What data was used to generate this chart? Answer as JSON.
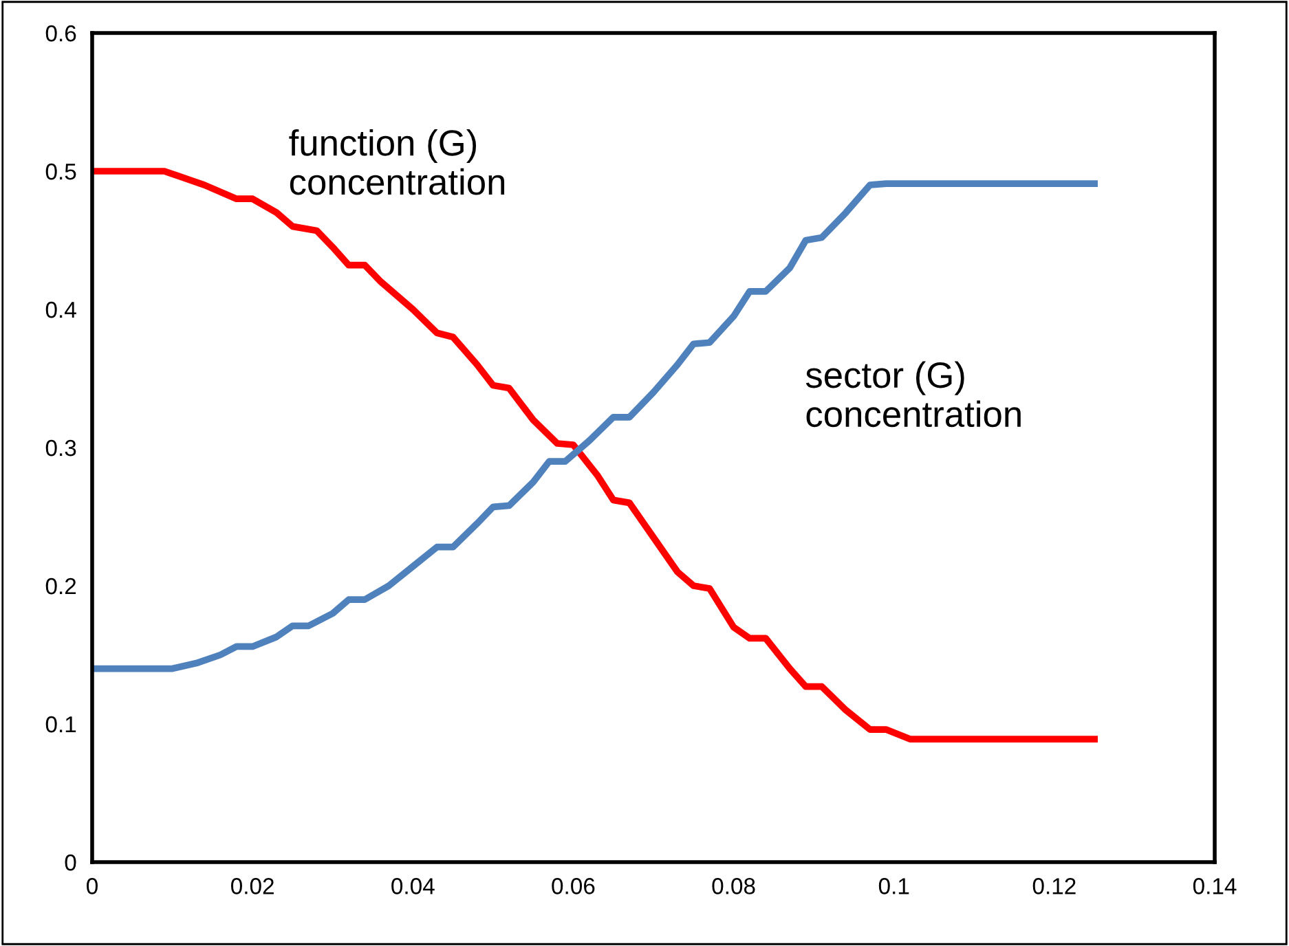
{
  "chart_data": {
    "type": "line",
    "xlim": [
      0,
      0.14
    ],
    "ylim": [
      0,
      0.6
    ],
    "xticks": [
      0,
      0.02,
      0.04,
      0.06,
      0.08,
      0.1,
      0.12,
      0.14
    ],
    "yticks": [
      0,
      0.1,
      0.2,
      0.3,
      0.4,
      0.5,
      0.6
    ],
    "grid": false,
    "legend": false,
    "marker": "none",
    "line_style": "solid",
    "series": [
      {
        "name": "function (G)\nconcentration",
        "color": "#ff0000",
        "x": [
          0,
          0.009,
          0.014,
          0.018,
          0.02,
          0.023,
          0.025,
          0.028,
          0.03,
          0.032,
          0.034,
          0.036,
          0.04,
          0.043,
          0.045,
          0.048,
          0.05,
          0.052,
          0.055,
          0.058,
          0.06,
          0.063,
          0.065,
          0.067,
          0.07,
          0.073,
          0.075,
          0.077,
          0.08,
          0.082,
          0.084,
          0.087,
          0.089,
          0.091,
          0.094,
          0.097,
          0.099,
          0.102,
          0.104,
          0.125
        ],
        "values": [
          0.5,
          0.5,
          0.49,
          0.48,
          0.48,
          0.47,
          0.46,
          0.457,
          0.445,
          0.432,
          0.432,
          0.42,
          0.4,
          0.383,
          0.38,
          0.36,
          0.345,
          0.343,
          0.32,
          0.303,
          0.302,
          0.28,
          0.262,
          0.26,
          0.235,
          0.21,
          0.2,
          0.198,
          0.17,
          0.162,
          0.162,
          0.14,
          0.127,
          0.127,
          0.11,
          0.096,
          0.096,
          0.089,
          0.089,
          0.089
        ]
      },
      {
        "name": "sector (G)\nconcentration",
        "color": "#4f81bd",
        "x": [
          0,
          0.01,
          0.013,
          0.016,
          0.018,
          0.02,
          0.023,
          0.025,
          0.027,
          0.03,
          0.032,
          0.034,
          0.037,
          0.04,
          0.043,
          0.045,
          0.048,
          0.05,
          0.052,
          0.055,
          0.057,
          0.059,
          0.062,
          0.065,
          0.067,
          0.07,
          0.073,
          0.075,
          0.077,
          0.08,
          0.082,
          0.084,
          0.087,
          0.089,
          0.091,
          0.094,
          0.097,
          0.099,
          0.125
        ],
        "values": [
          0.14,
          0.14,
          0.144,
          0.15,
          0.156,
          0.156,
          0.163,
          0.171,
          0.171,
          0.18,
          0.19,
          0.19,
          0.2,
          0.214,
          0.228,
          0.228,
          0.245,
          0.257,
          0.258,
          0.275,
          0.29,
          0.29,
          0.305,
          0.322,
          0.322,
          0.34,
          0.36,
          0.375,
          0.376,
          0.395,
          0.413,
          0.413,
          0.43,
          0.45,
          0.452,
          0.47,
          0.49,
          0.491,
          0.491
        ]
      }
    ]
  }
}
